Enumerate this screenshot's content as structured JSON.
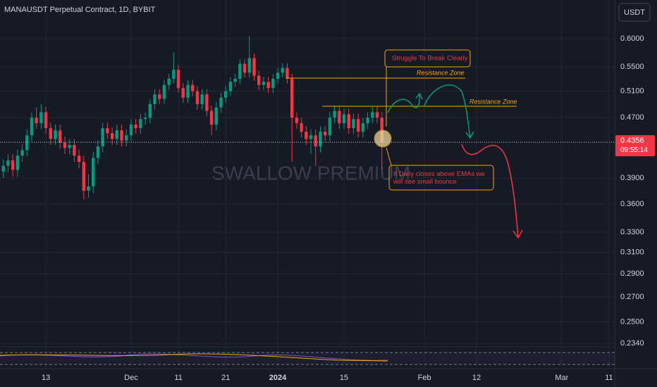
{
  "chart_data": {
    "type": "candlestick",
    "title": "MANAUSDT Perpetual Contract, 1D, BYBIT",
    "currency": "USDT",
    "watermark": "SWALLOW PREMIUM",
    "log_scale": true,
    "grid": true,
    "up_color": "#089981",
    "down_color": "#f23645",
    "ylim": [
      0.232,
      0.676
    ],
    "yticks": [
      {
        "value": 0.6,
        "label": "0.6000"
      },
      {
        "value": 0.55,
        "label": "0.5500"
      },
      {
        "value": 0.51,
        "label": "0.5100"
      },
      {
        "value": 0.47,
        "label": "0.4700"
      },
      {
        "value": 0.39,
        "label": "0.3900"
      },
      {
        "value": 0.36,
        "label": "0.3600"
      },
      {
        "value": 0.33,
        "label": "0.3300"
      },
      {
        "value": 0.31,
        "label": "0.3100"
      },
      {
        "value": 0.29,
        "label": "0.2900"
      },
      {
        "value": 0.27,
        "label": "0.2700"
      },
      {
        "value": 0.25,
        "label": "0.2500"
      },
      {
        "value": 0.234,
        "label": "0.2340"
      }
    ],
    "xlim": [
      -0.7,
      129.2
    ],
    "xticks": [
      {
        "value": 9,
        "label": "13"
      },
      {
        "value": 27,
        "label": "Dec"
      },
      {
        "value": 37,
        "label": "11"
      },
      {
        "value": 47,
        "label": "21"
      },
      {
        "value": 58,
        "label": "2024"
      },
      {
        "value": 72,
        "label": "15"
      },
      {
        "value": 89,
        "label": "Feb"
      },
      {
        "value": 100,
        "label": "12"
      },
      {
        "value": 118,
        "label": "Mar"
      },
      {
        "value": 128,
        "label": "11"
      }
    ],
    "last_price": {
      "value": 0.4356,
      "label": "0.4356"
    },
    "countdown": "09:55:14",
    "open": [
      0.398,
      0.405,
      0.412,
      0.4,
      0.418,
      0.425,
      0.445,
      0.47,
      0.462,
      0.478,
      0.455,
      0.44,
      0.452,
      0.435,
      0.428,
      0.432,
      0.418,
      0.41,
      0.375,
      0.38,
      0.415,
      0.43,
      0.455,
      0.448,
      0.44,
      0.452,
      0.438,
      0.445,
      0.46,
      0.455,
      0.468,
      0.47,
      0.49,
      0.505,
      0.498,
      0.52,
      0.53,
      0.545,
      0.515,
      0.5,
      0.52,
      0.51,
      0.49,
      0.505,
      0.48,
      0.46,
      0.485,
      0.5,
      0.51,
      0.525,
      0.53,
      0.555,
      0.54,
      0.565,
      0.535,
      0.52,
      0.525,
      0.515,
      0.53,
      0.54,
      0.548,
      0.53,
      0.47,
      0.462,
      0.45,
      0.44,
      0.445,
      0.43,
      0.45,
      0.445,
      0.47,
      0.48,
      0.462,
      0.475,
      0.455,
      0.468,
      0.45,
      0.462,
      0.47,
      0.478,
      0.47
    ],
    "high": [
      0.413,
      0.42,
      0.42,
      0.426,
      0.433,
      0.453,
      0.478,
      0.485,
      0.49,
      0.486,
      0.463,
      0.46,
      0.46,
      0.443,
      0.44,
      0.44,
      0.426,
      0.418,
      0.395,
      0.423,
      0.438,
      0.463,
      0.463,
      0.456,
      0.46,
      0.46,
      0.453,
      0.468,
      0.468,
      0.476,
      0.478,
      0.498,
      0.513,
      0.513,
      0.528,
      0.538,
      0.575,
      0.553,
      0.523,
      0.528,
      0.528,
      0.518,
      0.513,
      0.513,
      0.488,
      0.493,
      0.508,
      0.518,
      0.533,
      0.538,
      0.563,
      0.563,
      0.605,
      0.573,
      0.543,
      0.533,
      0.533,
      0.538,
      0.548,
      0.556,
      0.556,
      0.538,
      0.478,
      0.47,
      0.458,
      0.453,
      0.453,
      0.458,
      0.458,
      0.478,
      0.488,
      0.488,
      0.483,
      0.483,
      0.476,
      0.476,
      0.47,
      0.478,
      0.486,
      0.486,
      0.478
    ],
    "low": [
      0.39,
      0.397,
      0.392,
      0.392,
      0.41,
      0.417,
      0.437,
      0.454,
      0.454,
      0.447,
      0.432,
      0.432,
      0.427,
      0.42,
      0.42,
      0.41,
      0.402,
      0.365,
      0.367,
      0.372,
      0.407,
      0.422,
      0.44,
      0.432,
      0.432,
      0.43,
      0.43,
      0.437,
      0.447,
      0.447,
      0.46,
      0.462,
      0.482,
      0.49,
      0.49,
      0.512,
      0.522,
      0.507,
      0.492,
      0.492,
      0.502,
      0.482,
      0.482,
      0.472,
      0.445,
      0.452,
      0.477,
      0.492,
      0.502,
      0.517,
      0.522,
      0.532,
      0.532,
      0.527,
      0.512,
      0.512,
      0.507,
      0.507,
      0.522,
      0.532,
      0.522,
      0.41,
      0.454,
      0.442,
      0.432,
      0.42,
      0.405,
      0.422,
      0.437,
      0.437,
      0.462,
      0.454,
      0.454,
      0.447,
      0.447,
      0.442,
      0.442,
      0.454,
      0.462,
      0.462,
      0.4
    ],
    "close": [
      0.405,
      0.412,
      0.4,
      0.418,
      0.425,
      0.445,
      0.47,
      0.462,
      0.478,
      0.455,
      0.44,
      0.452,
      0.435,
      0.428,
      0.432,
      0.418,
      0.41,
      0.375,
      0.38,
      0.415,
      0.43,
      0.455,
      0.448,
      0.44,
      0.452,
      0.438,
      0.445,
      0.46,
      0.455,
      0.468,
      0.47,
      0.49,
      0.505,
      0.498,
      0.52,
      0.53,
      0.545,
      0.515,
      0.5,
      0.52,
      0.51,
      0.49,
      0.505,
      0.48,
      0.46,
      0.485,
      0.5,
      0.51,
      0.525,
      0.53,
      0.555,
      0.54,
      0.565,
      0.535,
      0.52,
      0.525,
      0.515,
      0.53,
      0.54,
      0.548,
      0.53,
      0.47,
      0.462,
      0.45,
      0.44,
      0.445,
      0.43,
      0.45,
      0.445,
      0.47,
      0.48,
      0.462,
      0.475,
      0.455,
      0.468,
      0.45,
      0.462,
      0.47,
      0.478,
      0.47,
      0.4356
    ],
    "annotations": {
      "struggle": "Struggle To Break Clearly",
      "resistance_1": "Resistance Zone",
      "resistance_2": "Resistance Zone",
      "bounce": "If Daily closes above EMAs we will see small bounce"
    }
  }
}
